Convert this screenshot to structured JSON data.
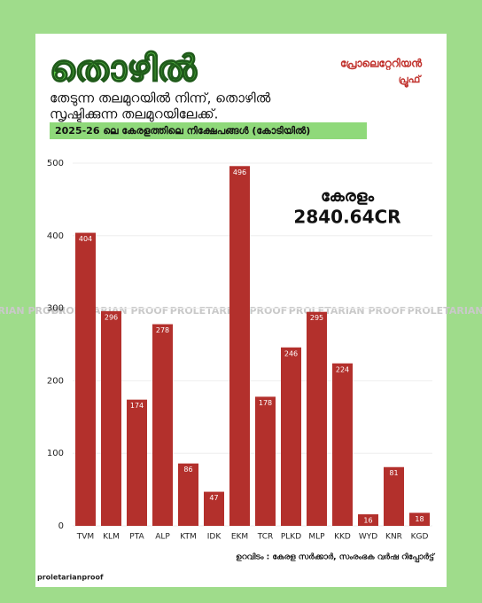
{
  "chart_data": {
    "type": "bar",
    "title": "തൊഴിൽ",
    "subtitle": [
      "തേടുന്ന തലമുറയിൽ നിന്ന്, തൊഴിൽ",
      "സൃഷ്ടിക്കുന്ന തലമുറയിലേക്ക്."
    ],
    "heading": "2025-26 ലെ കേരളത്തിലെ നിക്ഷേപങ്ങൾ (കോടിയിൽ)",
    "logo": [
      "പ്രോലെറ്റേറിയൻ",
      "പ്രൂഫ്"
    ],
    "annotation": [
      "കേരളം",
      "2840.64CR"
    ],
    "source": "ഉറവിടം : കേരള സർക്കാർ, സംരംഭക വർഷ റിപ്പോർട്ട്",
    "watermark": "PROLETARIAN PROOF",
    "footer": "proletarianproof",
    "categories": [
      "TVM",
      "KLM",
      "PTA",
      "ALP",
      "KTM",
      "IDK",
      "EKM",
      "TCR",
      "PLKD",
      "MLP",
      "KKD",
      "WYD",
      "KNR",
      "KGD"
    ],
    "values": [
      404,
      296,
      174,
      278,
      86,
      47,
      496,
      178,
      246,
      295,
      224,
      16,
      81,
      18
    ],
    "color": "#b3302c",
    "ylim": [
      0,
      500
    ],
    "yticks": [
      0,
      100,
      200,
      300,
      400,
      500
    ],
    "grid": true
  }
}
